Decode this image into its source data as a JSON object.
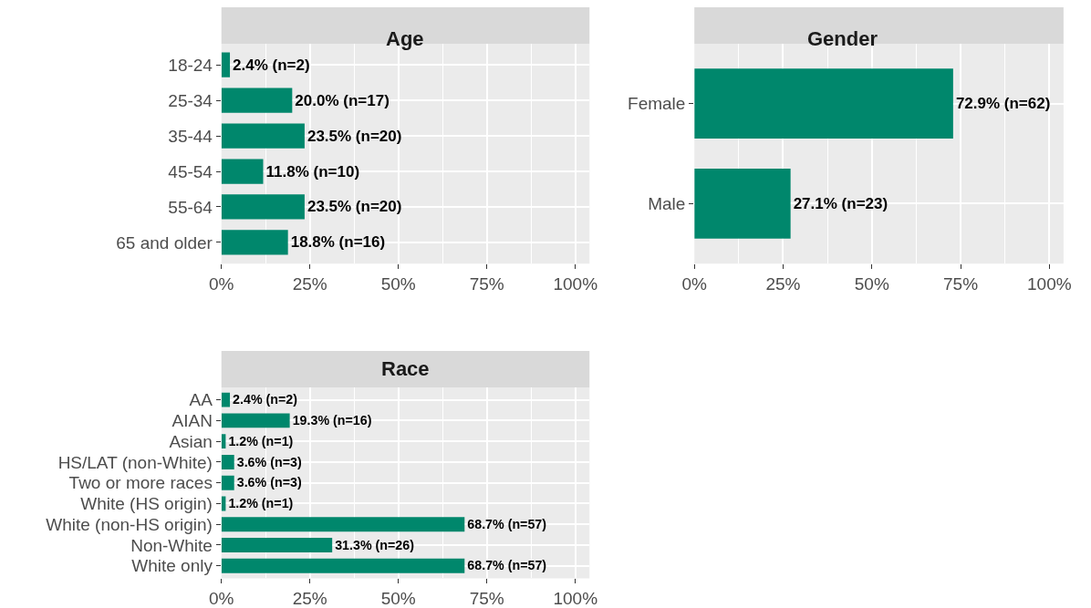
{
  "chart_data": [
    {
      "type": "bar",
      "orientation": "horizontal",
      "title": "Age",
      "categories": [
        "18-24",
        "25-34",
        "35-44",
        "45-54",
        "55-64",
        "65 and older"
      ],
      "values": [
        2.4,
        20.0,
        23.5,
        11.8,
        23.5,
        18.8
      ],
      "value_labels": [
        "2.4% (n=2)",
        "20.0% (n=17)",
        "23.5% (n=20)",
        "11.8% (n=10)",
        "23.5% (n=20)",
        "18.8% (n=16)"
      ],
      "color": "#00876c",
      "xlim": [
        0,
        104
      ],
      "xticks": [
        {
          "value": 0,
          "label": "0%"
        },
        {
          "value": 25,
          "label": "25%"
        },
        {
          "value": 50,
          "label": "50%"
        },
        {
          "value": 75,
          "label": "75%"
        },
        {
          "value": 100,
          "label": "100%"
        }
      ],
      "grid": true
    },
    {
      "type": "bar",
      "orientation": "horizontal",
      "title": "Gender",
      "categories": [
        "Female",
        "Male"
      ],
      "values": [
        72.9,
        27.1
      ],
      "value_labels": [
        "72.9% (n=62)",
        "27.1% (n=23)"
      ],
      "color": "#00876c",
      "xlim": [
        0,
        104
      ],
      "xticks": [
        {
          "value": 0,
          "label": "0%"
        },
        {
          "value": 25,
          "label": "25%"
        },
        {
          "value": 50,
          "label": "50%"
        },
        {
          "value": 75,
          "label": "75%"
        },
        {
          "value": 100,
          "label": "100%"
        }
      ],
      "grid": true
    },
    {
      "type": "bar",
      "orientation": "horizontal",
      "title": "Race",
      "categories": [
        "AA",
        "AIAN",
        "Asian",
        "HS/LAT (non-White)",
        "Two or more races",
        "White (HS origin)",
        "White (non-HS origin)",
        "Non-White",
        "White only"
      ],
      "values": [
        2.4,
        19.3,
        1.2,
        3.6,
        3.6,
        1.2,
        68.7,
        31.3,
        68.7
      ],
      "value_labels": [
        "2.4% (n=2)",
        "19.3% (n=16)",
        "1.2% (n=1)",
        "3.6% (n=3)",
        "3.6% (n=3)",
        "1.2% (n=1)",
        "68.7% (n=57)",
        "31.3% (n=26)",
        "68.7% (n=57)"
      ],
      "color": "#00876c",
      "xlim": [
        0,
        104
      ],
      "xticks": [
        {
          "value": 0,
          "label": "0%"
        },
        {
          "value": 25,
          "label": "25%"
        },
        {
          "value": 50,
          "label": "50%"
        },
        {
          "value": 75,
          "label": "75%"
        },
        {
          "value": 100,
          "label": "100%"
        }
      ],
      "grid": true
    }
  ]
}
